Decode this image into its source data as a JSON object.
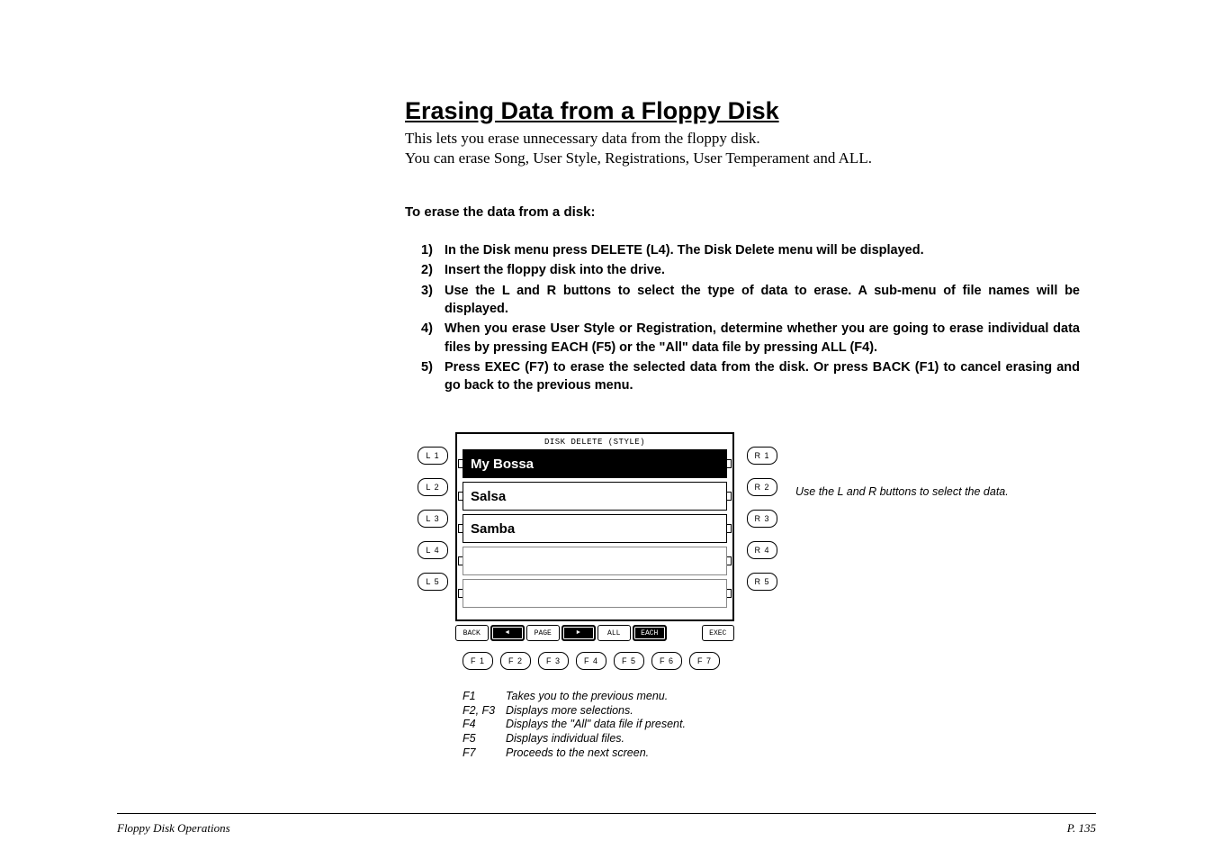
{
  "title": "Erasing Data from a Floppy Disk",
  "intro_line1": "This lets you erase unnecessary data from the floppy disk.",
  "intro_line2": "You can erase Song, User Style, Registrations, User Temperament and ALL.",
  "subhead": "To erase the data from a disk:",
  "steps": [
    {
      "n": "1)",
      "t": "In the Disk menu press DELETE (L4).  The Disk Delete menu will be displayed."
    },
    {
      "n": "2)",
      "t": "Insert the floppy disk into the drive."
    },
    {
      "n": "3)",
      "t": "Use the L and R buttons to select the type of data to erase.  A sub-menu of file names will be displayed."
    },
    {
      "n": "4)",
      "t": "When you erase User Style or Registration, determine whether you are going to erase individual data files by pressing EACH (F5) or the \"All\" data file by pressing ALL (F4)."
    },
    {
      "n": "5)",
      "t": "Press EXEC (F7) to erase the selected data from the disk.  Or press BACK (F1) to cancel erasing and go back to the previous menu."
    }
  ],
  "lcd": {
    "header": "DISK DELETE (STYLE)",
    "rows": [
      {
        "label": "My Bossa",
        "selected": true
      },
      {
        "label": "Salsa",
        "selected": false
      },
      {
        "label": "Samba",
        "selected": false
      },
      {
        "label": "",
        "selected": false
      },
      {
        "label": "",
        "selected": false
      }
    ],
    "softkeys": [
      {
        "label": "BACK",
        "type": "text",
        "sel": false
      },
      {
        "label": "",
        "type": "arrow-l",
        "sel": true
      },
      {
        "label": "PAGE",
        "type": "text",
        "sel": false
      },
      {
        "label": "",
        "type": "arrow-r",
        "sel": true
      },
      {
        "label": "ALL",
        "type": "text",
        "sel": false
      },
      {
        "label": "EACH",
        "type": "text",
        "sel": true
      },
      {
        "label": "",
        "type": "blank",
        "sel": false
      },
      {
        "label": "EXEC",
        "type": "text",
        "sel": false
      }
    ]
  },
  "left_btns": [
    "L 1",
    "L 2",
    "L 3",
    "L 4",
    "L 5"
  ],
  "right_btns": [
    "R 1",
    "R 2",
    "R 3",
    "R 4",
    "R 5"
  ],
  "f_btns": [
    "F 1",
    "F 2",
    "F 3",
    "F 4",
    "F 5",
    "F 6",
    "F 7"
  ],
  "caption_right": "Use the L and R buttons to select the data.",
  "f_legend": [
    {
      "k": "F1",
      "v": "Takes you to the previous menu."
    },
    {
      "k": "F2, F3",
      "v": "Displays more selections."
    },
    {
      "k": "F4",
      "v": "Displays the \"All\" data file if present."
    },
    {
      "k": "F5",
      "v": "Displays individual files."
    },
    {
      "k": "F7",
      "v": "Proceeds to the next screen."
    }
  ],
  "footer": {
    "left": "Floppy Disk Operations",
    "right": "P. 135"
  }
}
